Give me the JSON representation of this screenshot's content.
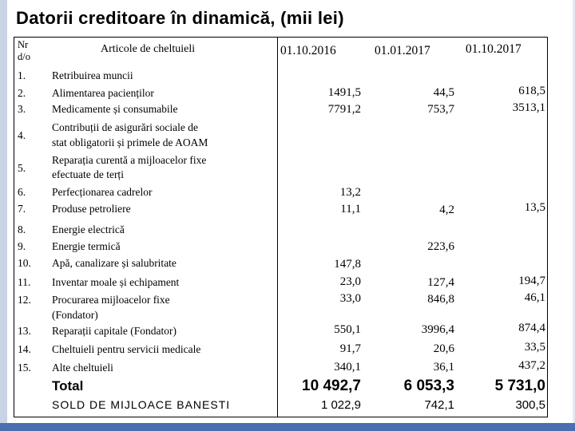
{
  "title": "Datorii creditoare în dinamică, (mii lei)",
  "table": {
    "headers": {
      "nr": "Nr d/o",
      "articles": "Articole de cheltuieli",
      "dates": [
        "01.10.2016",
        "01.01.2017",
        "01.10.2017"
      ]
    },
    "rows": [
      {
        "nr": "1.",
        "label": [
          "Retribuirea muncii"
        ]
      },
      {
        "nr": "2.",
        "label": [
          "Alimentarea pacienților"
        ]
      },
      {
        "nr": "3.",
        "label": [
          "Medicamente și consumabile"
        ]
      },
      {
        "nr": "4.",
        "label": [
          "Contribuții de asigurări sociale de",
          "stat obligatorii și primele de AOAM"
        ]
      },
      {
        "nr": "5.",
        "label": [
          "Reparația curentă a mijloacelor fixe",
          "efectuate de terți"
        ]
      },
      {
        "nr": "6.",
        "label": [
          "Perfecționarea cadrelor"
        ]
      },
      {
        "nr": "7.",
        "label": [
          "Produse petroliere"
        ]
      },
      {
        "nr": "8.",
        "label": [
          "Energie electrică"
        ]
      },
      {
        "nr": "9.",
        "label": [
          "Energie termică"
        ]
      },
      {
        "nr": "10.",
        "label": [
          "Apă, canalizare și salubritate"
        ]
      },
      {
        "nr": "11.",
        "label": [
          "Inventar moale și echipament"
        ]
      },
      {
        "nr": "12.",
        "label": [
          "Procurarea mijloacelor fixe",
          "(Fondator)"
        ]
      },
      {
        "nr": "13.",
        "label": [
          "Reparații capitale (Fondator)"
        ]
      },
      {
        "nr": "14.",
        "label": [
          "Cheltuieli pentru servicii medicale"
        ]
      },
      {
        "nr": "15.",
        "label": [
          "Alte cheltuieli"
        ]
      }
    ],
    "values": {
      "col2016": [
        {
          "row": 2,
          "value": "1491,5"
        },
        {
          "row": 3,
          "value": "7791,2"
        },
        {
          "row": 6,
          "value": "13,2"
        },
        {
          "row": 7,
          "value": "11,1"
        },
        {
          "row": 10,
          "value": "147,8"
        },
        {
          "row": 11,
          "value": "23,0"
        },
        {
          "row": 12,
          "value": "33,0"
        },
        {
          "row": 13,
          "value": "550,1"
        },
        {
          "row": 14,
          "value": "91,7"
        },
        {
          "row": 15,
          "value": "340,1"
        }
      ],
      "col2017a": [
        {
          "row": 2,
          "value": "44,5"
        },
        {
          "row": 3,
          "value": "753,7"
        },
        {
          "row": 7,
          "value": "4,2"
        },
        {
          "row": 9,
          "value": "223,6"
        },
        {
          "row": 11,
          "value": "127,4"
        },
        {
          "row": 12,
          "value": "846,8"
        },
        {
          "row": 13,
          "value": "3996,4"
        },
        {
          "row": 14,
          "value": "20,6"
        },
        {
          "row": 15,
          "value": "36,1"
        }
      ],
      "col2017b": [
        {
          "row": 2,
          "value": "618,5"
        },
        {
          "row": 3,
          "value": "3513,1"
        },
        {
          "row": 7,
          "value": "13,5"
        },
        {
          "row": 11,
          "value": "194,7"
        },
        {
          "row": 12,
          "value": "46,1"
        },
        {
          "row": 13,
          "value": "874,4"
        },
        {
          "row": 14,
          "value": "33,5"
        },
        {
          "row": 15,
          "value": "437,2"
        }
      ]
    },
    "total": {
      "label": "Total",
      "values": [
        "10 492,7",
        "6 053,3",
        "5 731,0"
      ]
    },
    "sold": {
      "label": "SOLD DE MIJLOACE BANESTI",
      "values": [
        "1 022,9",
        "742,1",
        "300,5"
      ]
    }
  }
}
